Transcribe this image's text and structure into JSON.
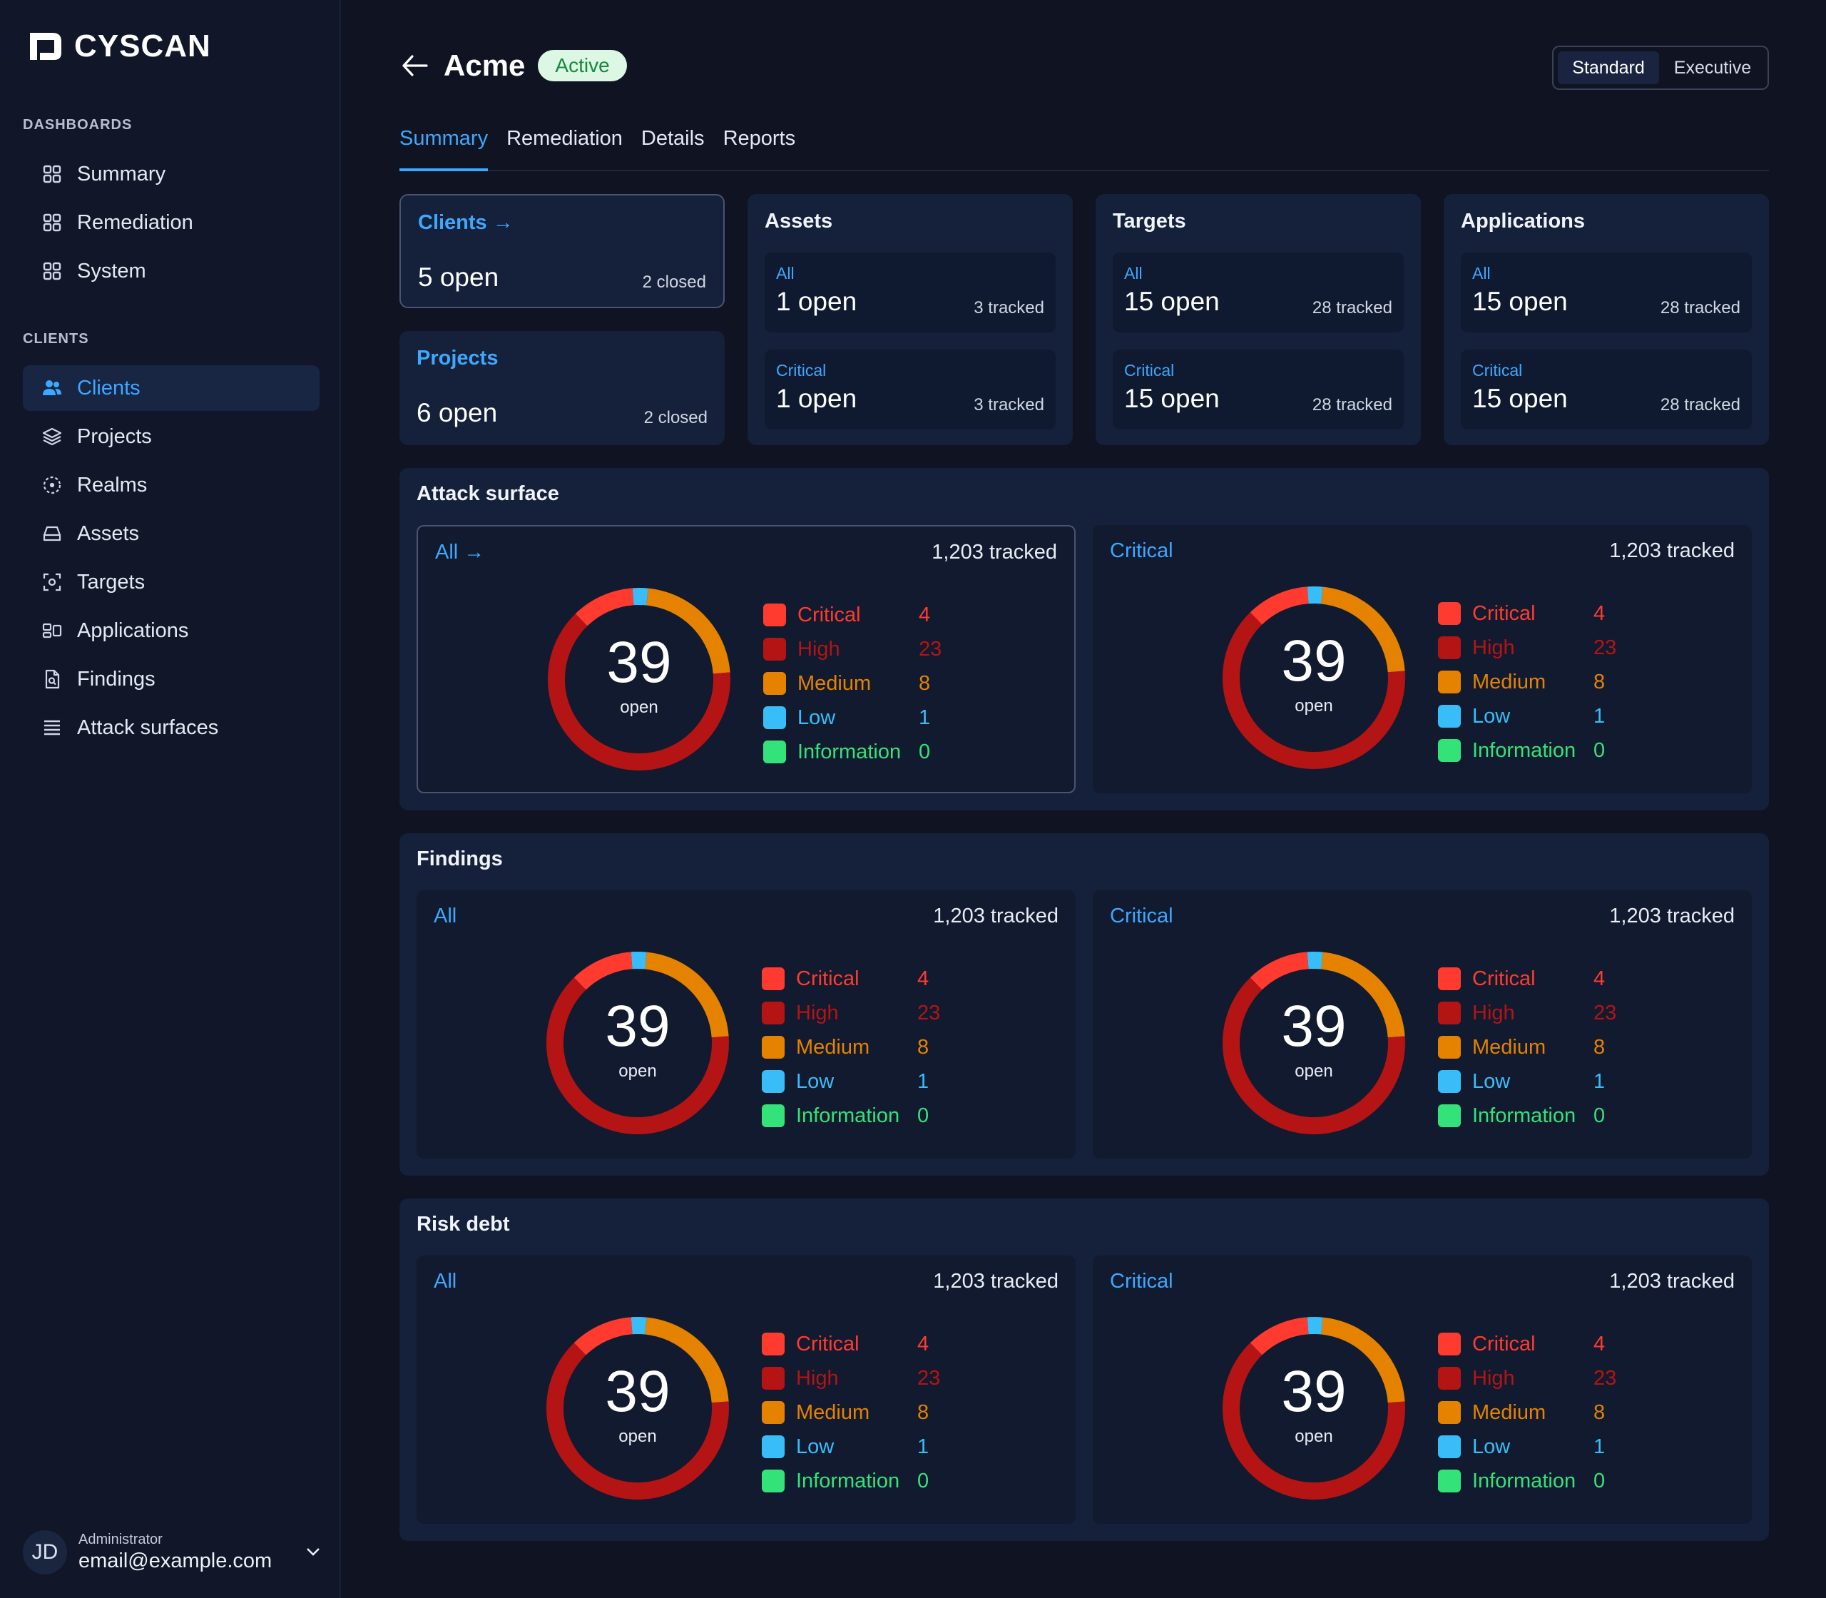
{
  "app": {
    "name": "CYSCAN"
  },
  "sidebar": {
    "dashboards_title": "DASHBOARDS",
    "clients_title": "CLIENTS",
    "dashboards": [
      {
        "label": "Summary",
        "icon": "grid-icon"
      },
      {
        "label": "Remediation",
        "icon": "grid-icon"
      },
      {
        "label": "System",
        "icon": "grid-icon"
      }
    ],
    "clients": [
      {
        "label": "Clients",
        "icon": "users-icon",
        "active": true
      },
      {
        "label": "Projects",
        "icon": "layers-icon"
      },
      {
        "label": "Realms",
        "icon": "realm-icon"
      },
      {
        "label": "Assets",
        "icon": "drive-icon"
      },
      {
        "label": "Targets",
        "icon": "target-icon"
      },
      {
        "label": "Applications",
        "icon": "apps-icon"
      },
      {
        "label": "Findings",
        "icon": "document-icon"
      },
      {
        "label": "Attack surfaces",
        "icon": "list-icon"
      }
    ],
    "user": {
      "initials": "JD",
      "role": "Administrator",
      "email": "email@example.com"
    }
  },
  "header": {
    "title": "Acme",
    "status": "Active",
    "view_toggle": [
      "Standard",
      "Executive"
    ],
    "view_selected": "Standard"
  },
  "tabs": [
    "Summary",
    "Remediation",
    "Details",
    "Reports"
  ],
  "active_tab": "Summary",
  "summary_cards": {
    "clients": {
      "title": "Clients",
      "open": "5 open",
      "closed": "2 closed"
    },
    "projects": {
      "title": "Projects",
      "open": "6 open",
      "closed": "2 closed"
    },
    "assets": {
      "title": "Assets",
      "items": [
        {
          "label": "All",
          "open": "1 open",
          "tracked": "3 tracked"
        },
        {
          "label": "Critical",
          "open": "1 open",
          "tracked": "3 tracked"
        }
      ]
    },
    "targets": {
      "title": "Targets",
      "items": [
        {
          "label": "All",
          "open": "15 open",
          "tracked": "28 tracked"
        },
        {
          "label": "Critical",
          "open": "15 open",
          "tracked": "28 tracked"
        }
      ]
    },
    "applications": {
      "title": "Applications",
      "items": [
        {
          "label": "All",
          "open": "15 open",
          "tracked": "28 tracked"
        },
        {
          "label": "Critical",
          "open": "15 open",
          "tracked": "28 tracked"
        }
      ]
    }
  },
  "colors": {
    "Critical": "#ff3b30",
    "High": "#b41414",
    "Medium": "#e58200",
    "Low": "#38bdf8",
    "Information": "#34e27a"
  },
  "sections": [
    {
      "title": "Attack surface",
      "panels": [
        {
          "label": "All",
          "tracked": "1,203 tracked",
          "total": "39",
          "sub": "open",
          "link": true
        },
        {
          "label": "Critical",
          "tracked": "1,203 tracked",
          "total": "39",
          "sub": "open"
        }
      ]
    },
    {
      "title": "Findings",
      "panels": [
        {
          "label": "All",
          "tracked": "1,203 tracked",
          "total": "39",
          "sub": "open"
        },
        {
          "label": "Critical",
          "tracked": "1,203 tracked",
          "total": "39",
          "sub": "open"
        }
      ]
    },
    {
      "title": "Risk debt",
      "panels": [
        {
          "label": "All",
          "tracked": "1,203 tracked",
          "total": "39",
          "sub": "open"
        },
        {
          "label": "Critical",
          "tracked": "1,203 tracked",
          "total": "39",
          "sub": "open"
        }
      ]
    }
  ],
  "severity_breakdown": [
    {
      "name": "Critical",
      "value": 4
    },
    {
      "name": "High",
      "value": 23
    },
    {
      "name": "Medium",
      "value": 8
    },
    {
      "name": "Low",
      "value": 1
    },
    {
      "name": "Information",
      "value": 0
    }
  ]
}
